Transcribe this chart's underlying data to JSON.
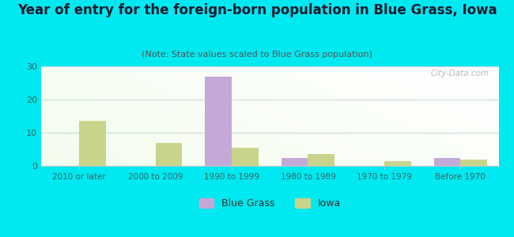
{
  "title": "Year of entry for the foreign-born population in Blue Grass, Iowa",
  "subtitle": "(Note: State values scaled to Blue Grass population)",
  "categories": [
    "2010 or later",
    "2000 to 2009",
    "1990 to 1999",
    "1980 to 1989",
    "1970 to 1979",
    "Before 1970"
  ],
  "blue_grass_values": [
    0,
    0,
    27,
    2.5,
    0,
    2.5
  ],
  "iowa_values": [
    13.5,
    7,
    5.5,
    3.5,
    1.5,
    2
  ],
  "blue_grass_color": "#c4a8d8",
  "iowa_color": "#c8d48a",
  "background_color": "#00e8f0",
  "ylim": [
    0,
    30
  ],
  "yticks": [
    0,
    10,
    20,
    30
  ],
  "title_fontsize": 12,
  "subtitle_fontsize": 8,
  "bar_width": 0.35,
  "watermark": "City-Data.com"
}
